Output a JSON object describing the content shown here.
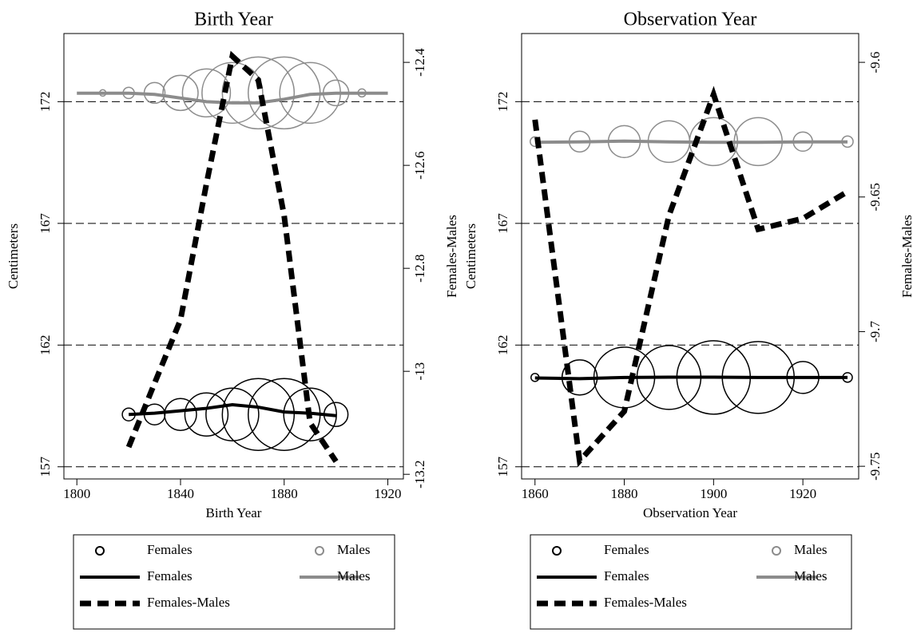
{
  "chart_data": [
    {
      "type": "scatter",
      "title": "Birth Year",
      "x_label": "Birth Year",
      "y_label": "Centimeters",
      "y2_label": "Females-Males",
      "xlim": [
        1795,
        1926
      ],
      "xticks": [
        1800,
        1840,
        1880,
        1920
      ],
      "ylim": [
        156.5,
        174.8
      ],
      "yticks": [
        157,
        162,
        167,
        172
      ],
      "y2lim": [
        -13.209,
        -12.344
      ],
      "y2ticks": [
        -12.4,
        -12.6,
        -12.8,
        -13,
        -13.2
      ],
      "grid": true,
      "series": [
        {
          "name": "Females",
          "style": "markers",
          "color": "#000000",
          "x": [
            1820,
            1830,
            1840,
            1850,
            1860,
            1870,
            1880,
            1890,
            1900
          ],
          "values": [
            159.15,
            159.15,
            159.15,
            159.15,
            159.15,
            159.15,
            159.15,
            159.15,
            159.15
          ],
          "sizes": [
            8,
            13,
            20,
            27,
            33,
            45,
            45,
            33,
            15
          ]
        },
        {
          "name": "Males",
          "style": "markers",
          "color": "#8c8c8c",
          "x": [
            1810,
            1820,
            1830,
            1840,
            1850,
            1860,
            1870,
            1880,
            1890,
            1900,
            1910
          ],
          "values": [
            172.36,
            172.36,
            172.36,
            172.36,
            172.36,
            172.36,
            172.36,
            172.36,
            172.36,
            172.36,
            172.36
          ],
          "sizes": [
            4,
            7,
            13,
            22,
            30,
            38,
            45,
            45,
            38,
            16,
            5
          ]
        },
        {
          "name": "Females",
          "style": "line",
          "color": "#000000",
          "x": [
            1820,
            1830,
            1840,
            1850,
            1860,
            1870,
            1880,
            1890,
            1900
          ],
          "values": [
            159.15,
            159.2,
            159.3,
            159.4,
            159.55,
            159.45,
            159.25,
            159.2,
            159.1
          ]
        },
        {
          "name": "Males",
          "style": "line",
          "color": "#8c8c8c",
          "x": [
            1800,
            1810,
            1820,
            1830,
            1840,
            1850,
            1860,
            1870,
            1880,
            1890,
            1900,
            1910,
            1920
          ],
          "values": [
            172.35,
            172.35,
            172.35,
            172.3,
            172.15,
            172.0,
            171.95,
            171.95,
            172.1,
            172.3,
            172.35,
            172.35,
            172.35
          ]
        },
        {
          "name": "Females-Males",
          "style": "dashed",
          "color": "#000000",
          "axis": "y2",
          "x": [
            1820,
            1830,
            1840,
            1850,
            1860,
            1870,
            1880,
            1890,
            1900
          ],
          "values": [
            -13.147,
            -13.023,
            -12.9,
            -12.636,
            -12.388,
            -12.434,
            -12.698,
            -13.1,
            -13.175
          ]
        }
      ]
    },
    {
      "type": "scatter",
      "title": "Observation Year",
      "x_label": "Observation Year",
      "y_label": "Centimeters",
      "y2_label": "Females-Males",
      "xlim": [
        1857,
        1932.5
      ],
      "xticks": [
        1860,
        1880,
        1900,
        1920
      ],
      "ylim": [
        156.5,
        174.8
      ],
      "yticks": [
        157,
        162,
        167,
        172
      ],
      "y2lim": [
        -9.7547,
        -9.5893
      ],
      "y2ticks": [
        -9.6,
        -9.65,
        -9.7,
        -9.75
      ],
      "grid": true,
      "series": [
        {
          "name": "Females",
          "style": "markers",
          "color": "#000000",
          "x": [
            1860,
            1870,
            1880,
            1890,
            1900,
            1910,
            1920,
            1930
          ],
          "values": [
            160.67,
            160.67,
            160.67,
            160.67,
            160.67,
            160.67,
            160.67,
            160.67
          ],
          "sizes": [
            5,
            22,
            38,
            40,
            46,
            45,
            20,
            6
          ]
        },
        {
          "name": "Males",
          "style": "markers",
          "color": "#8c8c8c",
          "x": [
            1860,
            1870,
            1880,
            1890,
            1900,
            1910,
            1920,
            1930
          ],
          "values": [
            170.36,
            170.36,
            170.36,
            170.36,
            170.36,
            170.36,
            170.36,
            170.36
          ],
          "sizes": [
            6,
            13,
            20,
            26,
            30,
            30,
            12,
            7
          ]
        },
        {
          "name": "Females",
          "style": "line",
          "color": "#000000",
          "x": [
            1860,
            1870,
            1880,
            1890,
            1900,
            1910,
            1920,
            1930
          ],
          "values": [
            160.65,
            160.62,
            160.67,
            160.68,
            160.68,
            160.67,
            160.67,
            160.67
          ]
        },
        {
          "name": "Males",
          "style": "line",
          "color": "#8c8c8c",
          "x": [
            1860,
            1870,
            1880,
            1890,
            1900,
            1910,
            1920,
            1930
          ],
          "values": [
            170.33,
            170.35,
            170.38,
            170.35,
            170.33,
            170.33,
            170.35,
            170.35
          ]
        },
        {
          "name": "Females-Males",
          "style": "dashed",
          "color": "#000000",
          "axis": "y2",
          "x": [
            1860,
            1870,
            1880,
            1890,
            1900,
            1910,
            1920,
            1930
          ],
          "values": [
            -9.6213,
            -9.748,
            -9.7296,
            -9.6569,
            -9.6119,
            -9.662,
            -9.658,
            -9.648
          ]
        }
      ]
    }
  ]
}
